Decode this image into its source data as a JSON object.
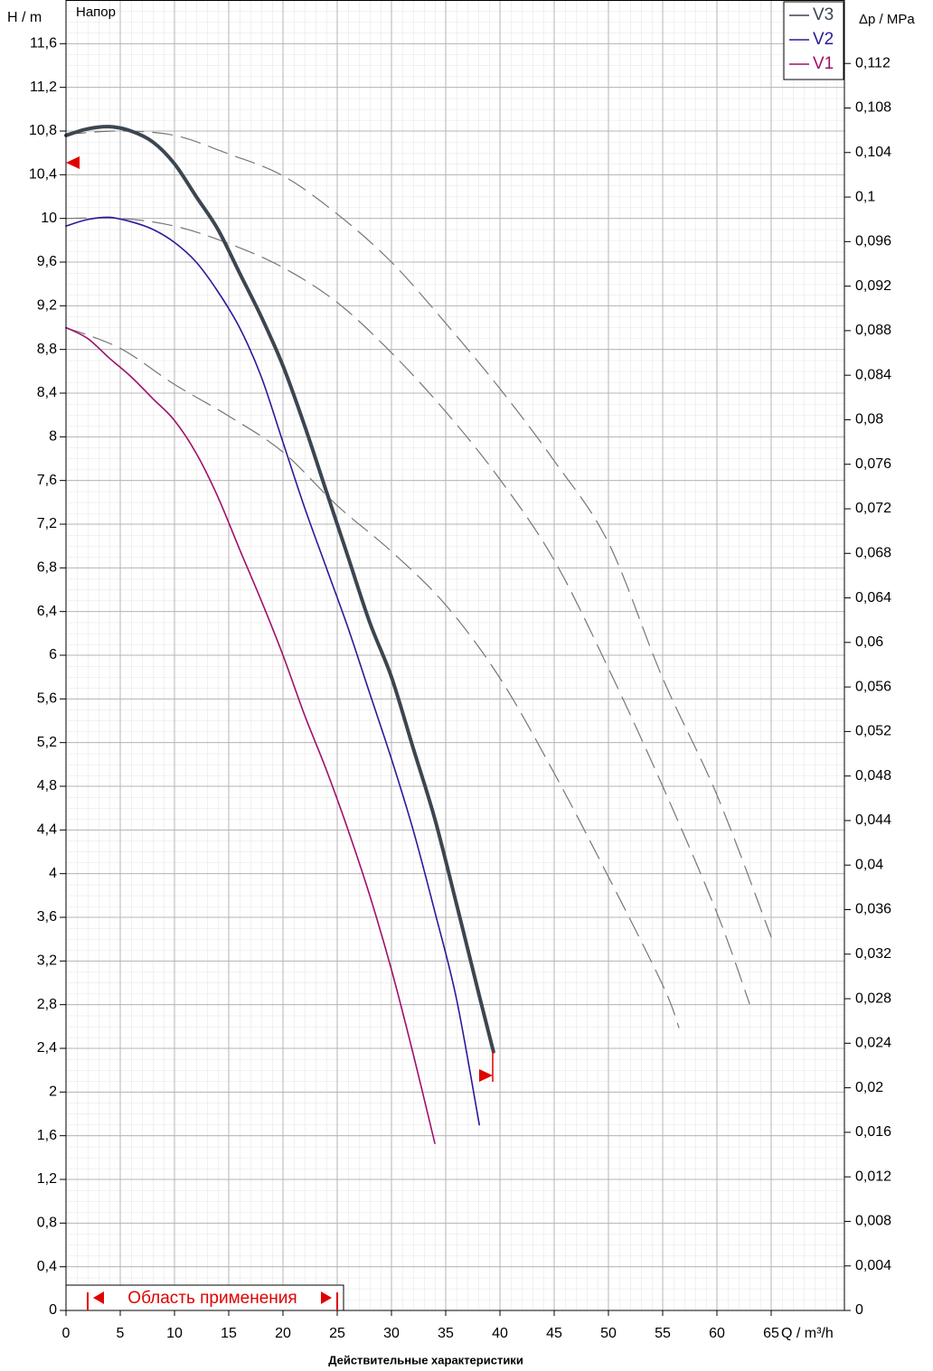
{
  "chart_data": {
    "type": "line",
    "annotation": "Напор",
    "subtitle": "Действительные характеристики",
    "y_label": "H / m",
    "y2_label": "Δp / MPa",
    "x_label": "Q / m³/h",
    "range_label": "Область применения",
    "application_range": [
      2,
      25
    ],
    "xlim": [
      0,
      71.75
    ],
    "xticks": [
      0,
      5,
      10,
      15,
      20,
      25,
      30,
      35,
      40,
      45,
      50,
      55,
      60,
      65
    ],
    "ylim": [
      0,
      12
    ],
    "yticks": [
      0,
      {
        "value": 0.4,
        "label": "0,4"
      },
      {
        "value": 0.8,
        "label": "0,8"
      },
      {
        "value": 1.2,
        "label": "1,2"
      },
      {
        "value": 1.6,
        "label": "1,6"
      },
      2,
      {
        "value": 2.4,
        "label": "2,4"
      },
      {
        "value": 2.8,
        "label": "2,8"
      },
      {
        "value": 3.2,
        "label": "3,2"
      },
      {
        "value": 3.6,
        "label": "3,6"
      },
      4,
      {
        "value": 4.4,
        "label": "4,4"
      },
      {
        "value": 4.8,
        "label": "4,8"
      },
      {
        "value": 5.2,
        "label": "5,2"
      },
      {
        "value": 5.6,
        "label": "5,6"
      },
      6,
      {
        "value": 6.4,
        "label": "6,4"
      },
      {
        "value": 6.8,
        "label": "6,8"
      },
      {
        "value": 7.2,
        "label": "7,2"
      },
      {
        "value": 7.6,
        "label": "7,6"
      },
      8,
      {
        "value": 8.4,
        "label": "8,4"
      },
      {
        "value": 8.8,
        "label": "8,8"
      },
      {
        "value": 9.2,
        "label": "9,2"
      },
      {
        "value": 9.6,
        "label": "9,6"
      },
      10,
      {
        "value": 10.4,
        "label": "10,4"
      },
      {
        "value": 10.8,
        "label": "10,8"
      },
      {
        "value": 11.2,
        "label": "11,2"
      },
      {
        "value": 11.6,
        "label": "11,6"
      }
    ],
    "y2lim": [
      0,
      0.1177
    ],
    "y2ticks": [
      0,
      {
        "value": 0.004,
        "label": "0,004"
      },
      {
        "value": 0.008,
        "label": "0,008"
      },
      {
        "value": 0.012,
        "label": "0,012"
      },
      {
        "value": 0.016,
        "label": "0,016"
      },
      {
        "value": 0.02,
        "label": "0,02"
      },
      {
        "value": 0.024,
        "label": "0,024"
      },
      {
        "value": 0.028,
        "label": "0,028"
      },
      {
        "value": 0.032,
        "label": "0,032"
      },
      {
        "value": 0.036,
        "label": "0,036"
      },
      {
        "value": 0.04,
        "label": "0,04"
      },
      {
        "value": 0.044,
        "label": "0,044"
      },
      {
        "value": 0.048,
        "label": "0,048"
      },
      {
        "value": 0.052,
        "label": "0,052"
      },
      {
        "value": 0.056,
        "label": "0,056"
      },
      {
        "value": 0.06,
        "label": "0,06"
      },
      {
        "value": 0.064,
        "label": "0,064"
      },
      {
        "value": 0.068,
        "label": "0,068"
      },
      {
        "value": 0.072,
        "label": "0,072"
      },
      {
        "value": 0.076,
        "label": "0,076"
      },
      {
        "value": 0.08,
        "label": "0,08"
      },
      {
        "value": 0.084,
        "label": "0,084"
      },
      {
        "value": 0.088,
        "label": "0,088"
      },
      {
        "value": 0.092,
        "label": "0,092"
      },
      {
        "value": 0.096,
        "label": "0,096"
      },
      {
        "value": 0.1,
        "label": "0,1"
      },
      {
        "value": 0.104,
        "label": "0,104"
      },
      {
        "value": 0.108,
        "label": "0,108"
      },
      {
        "value": 0.112,
        "label": "0,112"
      }
    ],
    "grid": true,
    "legend": "upper right",
    "series": [
      {
        "name": "V3",
        "color": "#3c4650",
        "width": 4,
        "x": [
          0,
          2,
          4,
          6,
          8,
          10,
          12,
          14,
          16,
          18,
          20,
          22,
          24,
          26,
          28,
          30,
          32,
          34,
          36,
          38,
          39.4
        ],
        "values": [
          10.76,
          10.82,
          10.84,
          10.8,
          10.7,
          10.5,
          10.2,
          9.9,
          9.5,
          9.1,
          8.65,
          8.1,
          7.5,
          6.9,
          6.3,
          5.8,
          5.15,
          4.5,
          3.72,
          2.92,
          2.37
        ]
      },
      {
        "name": "V2",
        "color": "#2a1a9a",
        "width": 1.6,
        "x": [
          0,
          2,
          4,
          6,
          8,
          10,
          12,
          14,
          16,
          18,
          20,
          22,
          24,
          26,
          28,
          30,
          32,
          34,
          36,
          38.1
        ],
        "values": [
          9.93,
          9.99,
          10.01,
          9.97,
          9.9,
          9.78,
          9.6,
          9.33,
          9.0,
          8.55,
          7.95,
          7.35,
          6.8,
          6.25,
          5.65,
          5.05,
          4.4,
          3.65,
          2.85,
          1.7
        ]
      },
      {
        "name": "V1",
        "color": "#a0106a",
        "width": 1.6,
        "x": [
          0,
          2,
          4,
          6,
          8,
          10,
          12,
          14,
          16,
          18,
          20,
          22,
          24,
          26,
          28,
          30,
          32,
          34
        ],
        "values": [
          9.0,
          8.9,
          8.72,
          8.55,
          8.35,
          8.15,
          7.85,
          7.45,
          6.97,
          6.5,
          6.0,
          5.45,
          4.95,
          4.4,
          3.8,
          3.12,
          2.35,
          1.53
        ]
      },
      {
        "color": "#777777",
        "width": 1.2,
        "dashed": true,
        "x": [
          0,
          5,
          10,
          15,
          20,
          25,
          30,
          35,
          40,
          45,
          50,
          55,
          60,
          65
        ],
        "values": [
          10.77,
          10.8,
          10.76,
          10.59,
          10.39,
          10.04,
          9.6,
          9.04,
          8.44,
          7.78,
          7.03,
          5.79,
          4.72,
          3.42
        ]
      },
      {
        "color": "#777777",
        "width": 1.2,
        "dashed": true,
        "x": [
          0,
          5,
          10,
          15,
          20,
          25,
          30,
          35,
          40,
          45,
          50,
          55,
          60,
          63
        ],
        "values": [
          10.0,
          10.0,
          9.93,
          9.77,
          9.55,
          9.23,
          8.77,
          8.23,
          7.61,
          6.87,
          5.88,
          4.8,
          3.64,
          2.81
        ]
      },
      {
        "color": "#777777",
        "width": 1.2,
        "dashed": true,
        "x": [
          0,
          5,
          10,
          15,
          20,
          25,
          30,
          35,
          40,
          45,
          50,
          55,
          56.5
        ],
        "values": [
          9.0,
          8.81,
          8.48,
          8.19,
          7.86,
          7.37,
          6.95,
          6.46,
          5.79,
          4.92,
          3.97,
          2.98,
          2.59
        ]
      }
    ]
  }
}
